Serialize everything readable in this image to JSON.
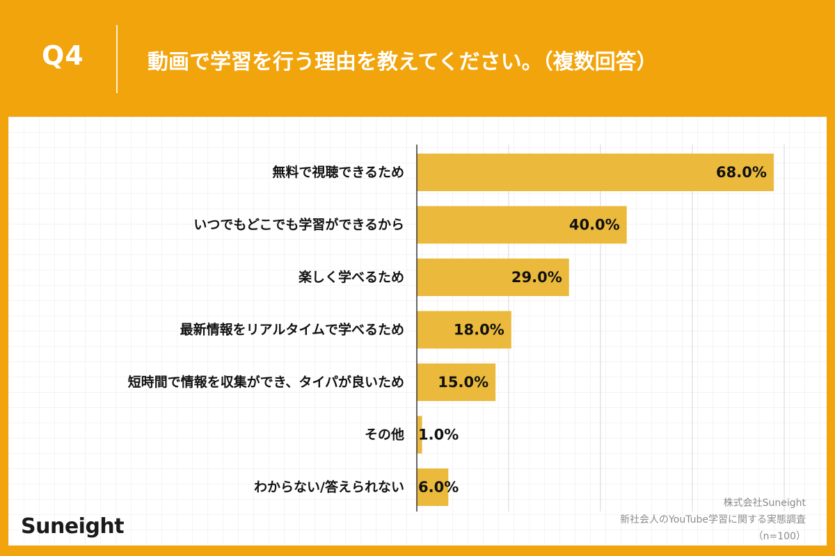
{
  "header": {
    "question_number": "Q4",
    "title": "動画で学習を行う理由を教えてください。（複数回答）"
  },
  "brand": {
    "logo_text": "Suneight"
  },
  "source": {
    "company": "株式会社Suneight",
    "survey": "新社会人のYouTube学習に関する実態調査",
    "sample": "（n=100）"
  },
  "colors": {
    "background": "#F2A40C",
    "bar": "#EBB93C",
    "card": "#FFFFFF",
    "text": "#111111"
  },
  "chart_data": {
    "type": "bar",
    "orientation": "horizontal",
    "title": "動画で学習を行う理由を教えてください。（複数回答）",
    "categories": [
      "無料で視聴できるため",
      "いつでもどこでも学習ができるから",
      "楽しく学べるため",
      "最新情報をリアルタイムで学べるため",
      "短時間で情報を収集ができ、タイパが良いため",
      "その他",
      "わからない/答えられない"
    ],
    "values": [
      68.0,
      40.0,
      29.0,
      18.0,
      15.0,
      1.0,
      6.0
    ],
    "value_labels": [
      "68.0%",
      "40.0%",
      "29.0%",
      "18.0%",
      "15.0%",
      "1.0%",
      "6.0%"
    ],
    "unit": "%",
    "xlim": [
      0,
      70
    ],
    "grid": true,
    "grid_step": 17.5
  }
}
